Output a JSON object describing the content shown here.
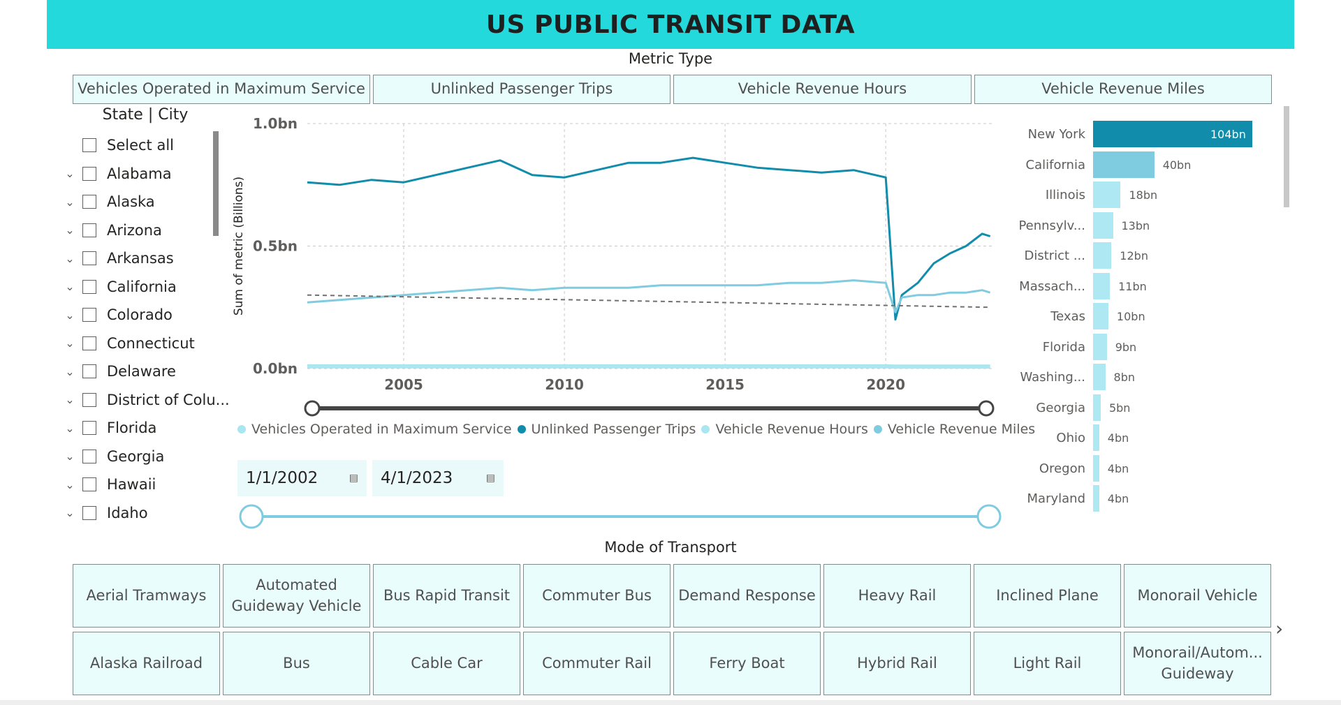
{
  "header": {
    "title": "US PUBLIC TRANSIT DATA"
  },
  "metric_type": {
    "title": "Metric Type",
    "options": [
      "Vehicles Operated in Maximum Service",
      "Unlinked Passenger Trips",
      "Vehicle Revenue Hours",
      "Vehicle Revenue Miles"
    ]
  },
  "state_slicer": {
    "title": "State | City",
    "select_all": "Select all",
    "items": [
      "Alabama",
      "Alaska",
      "Arizona",
      "Arkansas",
      "California",
      "Colorado",
      "Connecticut",
      "Delaware",
      "District of Colu...",
      "Florida",
      "Georgia",
      "Hawaii",
      "Idaho"
    ]
  },
  "date_range": {
    "start": "1/1/2002",
    "end": "4/1/2023"
  },
  "mode_of_transport": {
    "title": "Mode of Transport",
    "row1": [
      "Aerial Tramways",
      "Automated Guideway Vehicle",
      "Bus Rapid Transit",
      "Commuter Bus",
      "Demand Response",
      "Heavy Rail",
      "Inclined Plane",
      "Monorail Vehicle"
    ],
    "row2": [
      "Alaska Railroad",
      "Bus",
      "Cable Car",
      "Commuter Rail",
      "Ferry Boat",
      "Hybrid Rail",
      "Light Rail",
      "Monorail/Autom... Guideway"
    ]
  },
  "colors": {
    "banner": "#23d9dc",
    "vehicles_operated": "#a9e6f0",
    "unlinked_trips": "#118dab",
    "revenue_hours": "#a9e6f0",
    "revenue_miles": "#7fcbe0",
    "trend": "#707070",
    "bar_primary": "#118dab",
    "bar_secondary": "#7fcbe0",
    "bar_light": "#aee8f2"
  },
  "chart_data": [
    {
      "type": "line",
      "title": "",
      "ylabel": "Sum of metric (Billions)",
      "xlabel": "",
      "ylim": [
        0,
        1.0
      ],
      "y_ticks": [
        "0.0bn",
        "0.5bn",
        "1.0bn"
      ],
      "y_tick_values": [
        0,
        0.5,
        1.0
      ],
      "x_ticks": [
        "2005",
        "2010",
        "2015",
        "2020"
      ],
      "x_tick_values": [
        2005,
        2010,
        2015,
        2020
      ],
      "xlim": [
        2002.0,
        2023.3
      ],
      "grid": true,
      "legend_placement": "bottom",
      "x": [
        2002.0,
        2003.0,
        2004.0,
        2005.0,
        2006.0,
        2007.0,
        2008.0,
        2009.0,
        2010.0,
        2011.0,
        2012.0,
        2013.0,
        2014.0,
        2015.0,
        2016.0,
        2017.0,
        2018.0,
        2019.0,
        2020.0,
        2020.3,
        2020.5,
        2021.0,
        2021.5,
        2022.0,
        2022.5,
        2023.0,
        2023.25
      ],
      "series": [
        {
          "name": "Vehicles Operated in Maximum Service",
          "values": [
            0.013,
            0.013,
            0.013,
            0.013,
            0.013,
            0.013,
            0.013,
            0.013,
            0.013,
            0.013,
            0.013,
            0.013,
            0.013,
            0.013,
            0.013,
            0.013,
            0.013,
            0.013,
            0.013,
            0.012,
            0.012,
            0.012,
            0.012,
            0.012,
            0.012,
            0.012,
            0.012
          ]
        },
        {
          "name": "Unlinked Passenger Trips",
          "values": [
            0.76,
            0.75,
            0.77,
            0.76,
            0.79,
            0.82,
            0.85,
            0.79,
            0.78,
            0.81,
            0.84,
            0.84,
            0.86,
            0.84,
            0.82,
            0.81,
            0.8,
            0.81,
            0.78,
            0.2,
            0.3,
            0.35,
            0.43,
            0.47,
            0.5,
            0.55,
            0.54
          ]
        },
        {
          "name": "Vehicle Revenue Hours",
          "values": [
            0.005,
            0.005,
            0.005,
            0.005,
            0.005,
            0.005,
            0.005,
            0.005,
            0.005,
            0.005,
            0.005,
            0.005,
            0.005,
            0.005,
            0.005,
            0.005,
            0.005,
            0.005,
            0.005,
            0.004,
            0.004,
            0.004,
            0.004,
            0.004,
            0.004,
            0.004,
            0.004
          ]
        },
        {
          "name": "Vehicle Revenue Miles",
          "values": [
            0.27,
            0.28,
            0.29,
            0.3,
            0.31,
            0.32,
            0.33,
            0.32,
            0.33,
            0.33,
            0.33,
            0.34,
            0.34,
            0.34,
            0.34,
            0.35,
            0.35,
            0.36,
            0.35,
            0.23,
            0.29,
            0.3,
            0.3,
            0.31,
            0.31,
            0.32,
            0.31
          ]
        }
      ],
      "trend_line": {
        "x": [
          2002.0,
          2023.25
        ],
        "values": [
          0.3,
          0.25
        ]
      }
    },
    {
      "type": "bar",
      "orientation": "horizontal",
      "categories": [
        "New York",
        "California",
        "Illinois",
        "Pennsylv...",
        "District ...",
        "Massach...",
        "Texas",
        "Florida",
        "Washing...",
        "Georgia",
        "Ohio",
        "Oregon",
        "Maryland"
      ],
      "values": [
        104,
        40,
        18,
        13,
        12,
        11,
        10,
        9,
        8,
        5,
        4,
        4,
        4
      ],
      "value_labels": [
        "104bn",
        "40bn",
        "18bn",
        "13bn",
        "12bn",
        "11bn",
        "10bn",
        "9bn",
        "8bn",
        "5bn",
        "4bn",
        "4bn",
        "4bn"
      ]
    }
  ]
}
